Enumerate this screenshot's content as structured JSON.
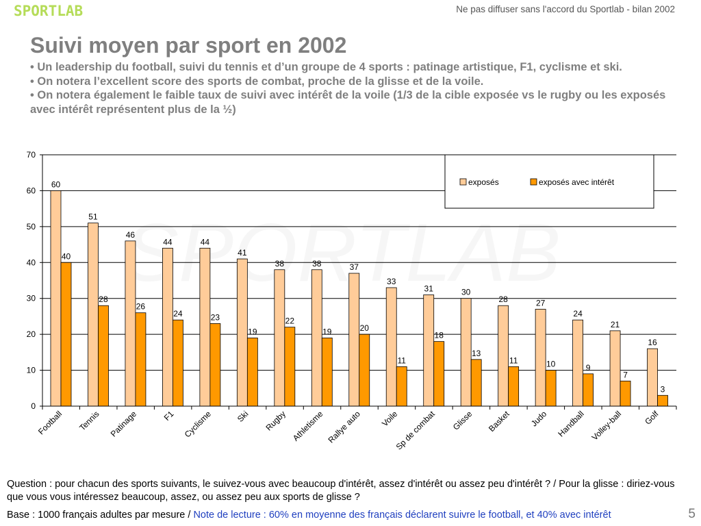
{
  "header": {
    "logo": "SPORTLAB",
    "confidential": "Ne pas diffuser sans l'accord du Sportlab - bilan 2002"
  },
  "title": "Suivi moyen par sport en 2002",
  "bullets": [
    "• Un leadership du football, suivi du tennis et d’un groupe de 4 sports :  patinage artistique, F1, cyclisme et ski.",
    "• On notera l’excellent score des sports de combat, proche de la glisse et de la voile.",
    "• On notera également le faible taux de suivi avec intérêt de la voile (1/3 de la cible exposée vs le rugby ou les exposés avec intérêt représentent plus de la ½)"
  ],
  "watermark": "SPORTLAB",
  "chart_data": {
    "type": "bar",
    "categories": [
      "Football",
      "Tennis",
      "Patinage",
      "F1",
      "Cyclisme",
      "Ski",
      "Rugby",
      "Athletisme",
      "Rallye auto",
      "Voile",
      "Sp de combat",
      "Glisse",
      "Basket",
      "Judo",
      "Handball",
      "Volley-ball",
      "Golf"
    ],
    "series": [
      {
        "name": "exposés",
        "color": "#ffcc99",
        "values": [
          60,
          51,
          46,
          44,
          44,
          41,
          38,
          38,
          37,
          33,
          31,
          30,
          28,
          27,
          24,
          21,
          16
        ]
      },
      {
        "name": "exposés avec intérêt",
        "color": "#ff9900",
        "values": [
          40,
          28,
          26,
          24,
          23,
          19,
          22,
          19,
          20,
          11,
          18,
          13,
          11,
          10,
          9,
          7,
          3
        ]
      }
    ],
    "ylim": [
      0,
      70
    ],
    "yticks": [
      0,
      10,
      20,
      30,
      40,
      50,
      60,
      70
    ],
    "grid": true,
    "legend": "top-right"
  },
  "footer": {
    "question": "Question : pour chacun des sports suivants, le suivez-vous avec beaucoup d'intérêt, assez d'intérêt ou assez peu d'intérêt ? / Pour la glisse : diriez-vous que vous vous intéressez beaucoup, assez, ou assez peu aux sports de glisse ?",
    "base": "Base : 1000 français adultes par mesure / ",
    "note": "Note de lecture : 60% en moyenne des français déclarent suivre le football, et 40% avec intérêt",
    "page": "5"
  }
}
